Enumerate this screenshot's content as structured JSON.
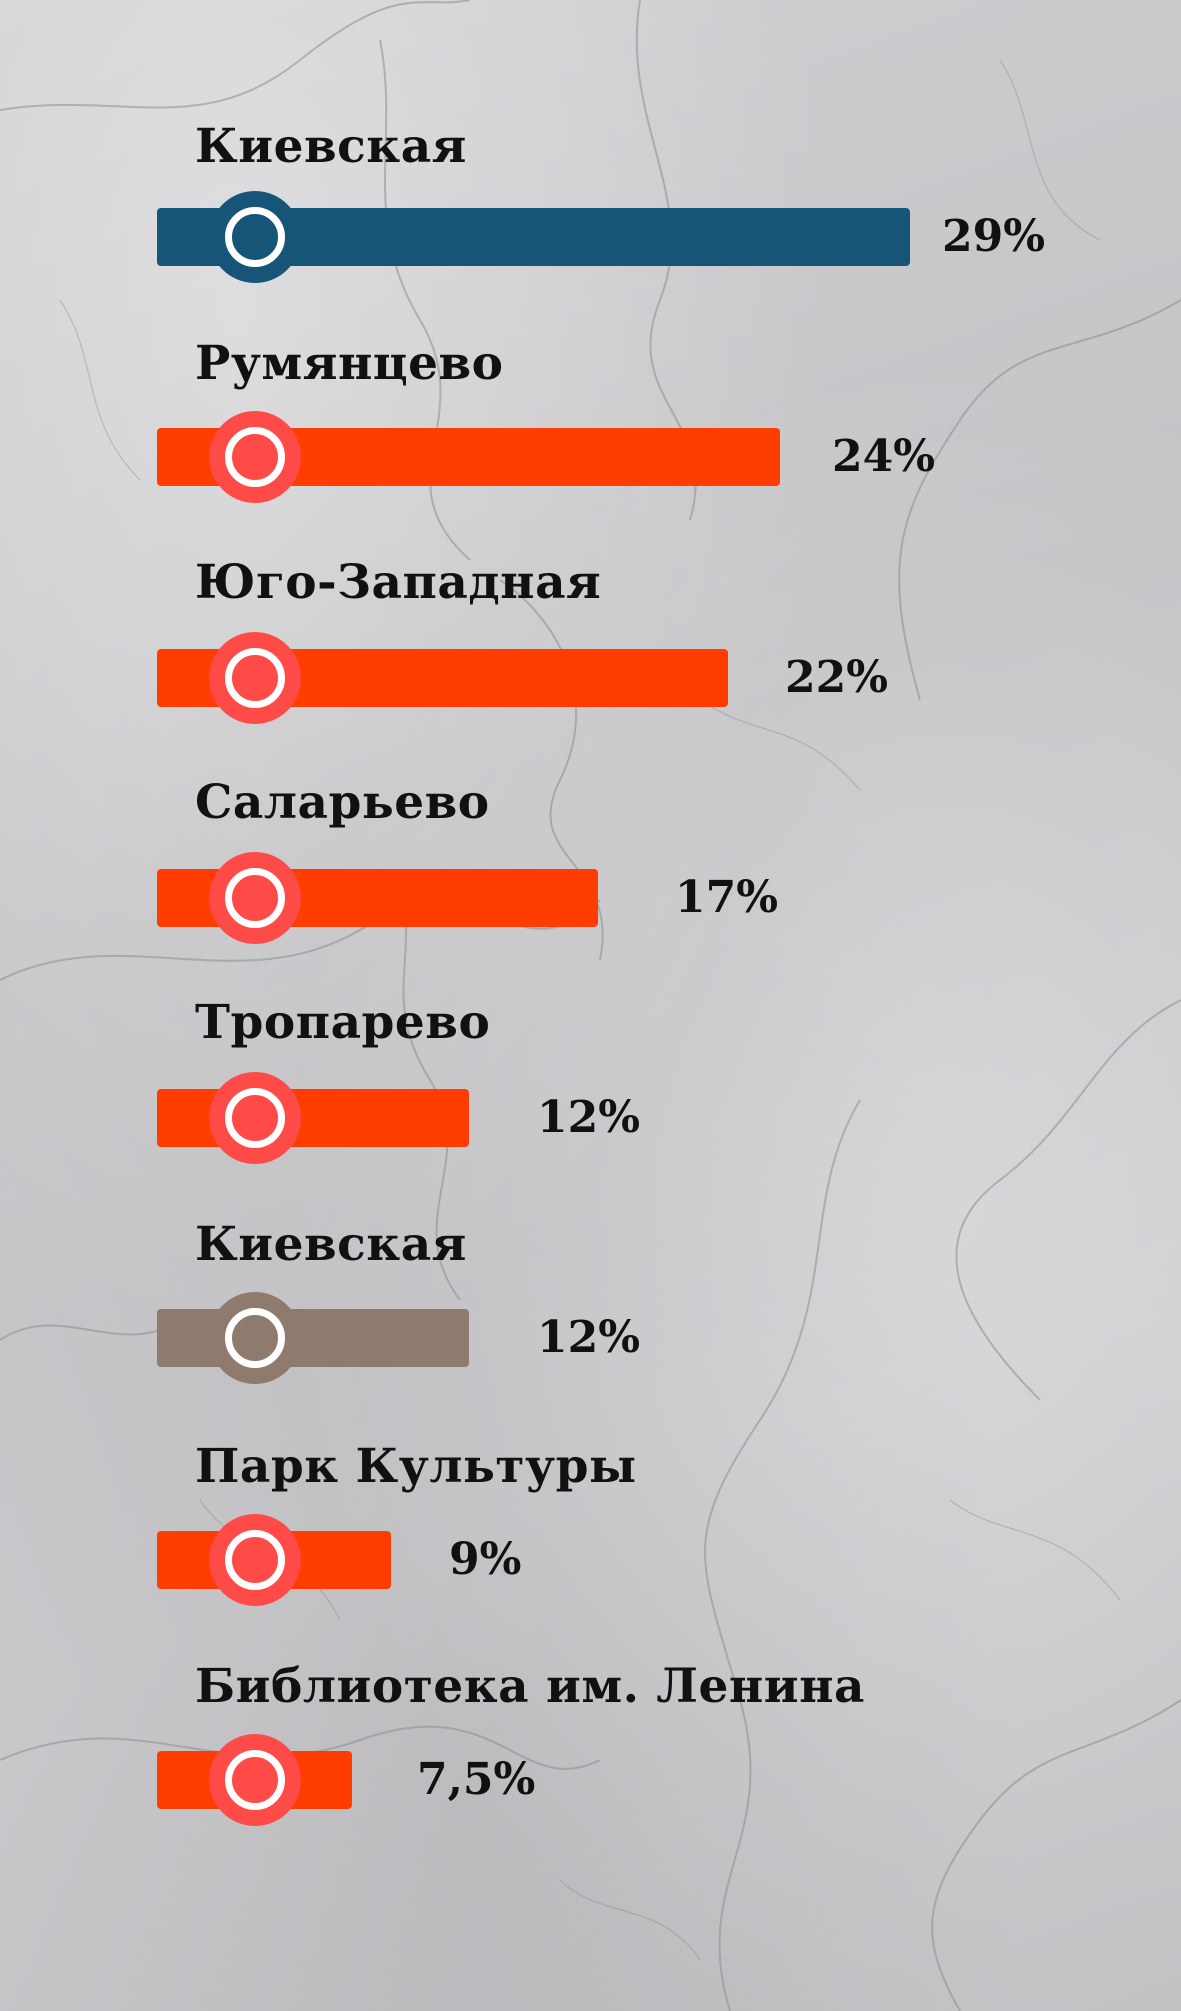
{
  "chart_data": {
    "type": "bar",
    "orientation": "horizontal",
    "categories": [
      "Киевская",
      "Румянцево",
      "Юго-Западная",
      "Саларьево",
      "Тропарево",
      "Киевская",
      "Парк Культуры",
      "Библиотека им. Ленина"
    ],
    "values": [
      29,
      24,
      22,
      17,
      12,
      12,
      9,
      7.5
    ],
    "value_labels": [
      "29%",
      "24%",
      "22%",
      "17%",
      "12%",
      "12%",
      "9%",
      "7,5%"
    ],
    "colors": [
      "#165577",
      "#ff3d00",
      "#ff3d00",
      "#ff3d00",
      "#ff3d00",
      "#8f7b6e",
      "#ff3d00",
      "#ff3d00"
    ],
    "knob_colors": [
      "#165577",
      "#ff4b47",
      "#ff4b47",
      "#ff4b47",
      "#ff4b47",
      "#8f7b6e",
      "#ff4b47",
      "#ff4b47"
    ],
    "title": "",
    "xlabel": "",
    "ylabel": "",
    "xlim": [
      0,
      29
    ],
    "grid": false,
    "legend": "none"
  }
}
